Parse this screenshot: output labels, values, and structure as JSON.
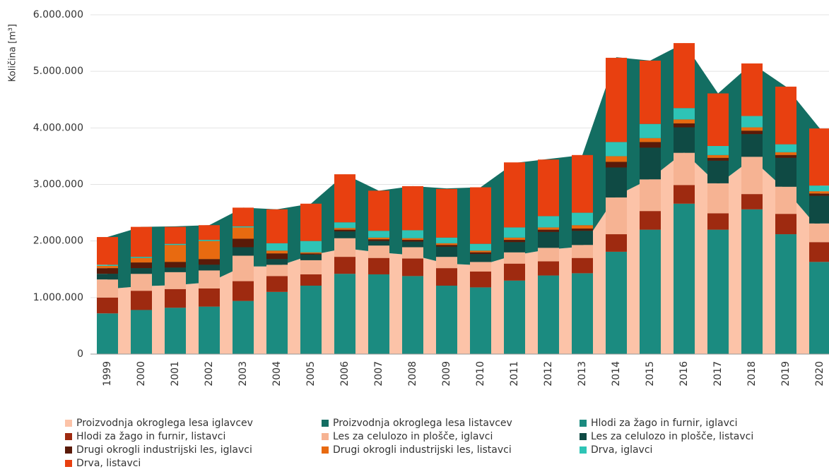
{
  "chart_data": {
    "type": "bar",
    "y_label": "Količina [m³]",
    "categories": [
      "1999",
      "2000",
      "2001",
      "2002",
      "2003",
      "2004",
      "2005",
      "2006",
      "2007",
      "2008",
      "2009",
      "2010",
      "2011",
      "2012",
      "2013",
      "2014",
      "2015",
      "2016",
      "2017",
      "2018",
      "2019",
      "2020"
    ],
    "ylim": [
      0,
      6000000
    ],
    "yticks": [
      0,
      {
        "value": 1000000,
        "label": "1.000.000"
      },
      {
        "value": 2000000,
        "label": "2.000.000"
      },
      {
        "value": 3000000,
        "label": "3.000.000"
      },
      {
        "value": 4000000,
        "label": "4.000.000"
      },
      {
        "value": 5000000,
        "label": "5.000.000"
      },
      {
        "value": 6000000,
        "label": "6.000.000"
      }
    ],
    "grid": true,
    "series": [
      {
        "name": "Proizvodnja okroglega lesa iglavcev",
        "kind": "area",
        "color": "#fcc3a8",
        "values": [
          1150000,
          1200000,
          1220000,
          1270000,
          1550000,
          1550000,
          1750000,
          1870000,
          1800000,
          1750000,
          1600000,
          1570000,
          1750000,
          1850000,
          1900000,
          2800000,
          3100000,
          3570000,
          3000000,
          3450000,
          2900000,
          2200000
        ]
      },
      {
        "name": "Proizvodnja okroglega lesa listavcev",
        "kind": "area",
        "color": "#136e62",
        "values": [
          920000,
          1050000,
          1040000,
          1010000,
          1040000,
          1010000,
          910000,
          1310000,
          1090000,
          1220000,
          1330000,
          1380000,
          1630000,
          1600000,
          1620000,
          2450000,
          2090000,
          1930000,
          1610000,
          1690000,
          1830000,
          1790000
        ]
      },
      {
        "name": "Hlodi za žago in furnir, iglavci",
        "kind": "bar",
        "color": "#1b8b80",
        "values": [
          720000,
          780000,
          820000,
          840000,
          940000,
          1100000,
          1210000,
          1420000,
          1410000,
          1380000,
          1210000,
          1180000,
          1300000,
          1390000,
          1430000,
          1810000,
          2200000,
          2660000,
          2200000,
          2560000,
          2120000,
          1630000
        ]
      },
      {
        "name": "Hlodi za žago in furnir, listavci",
        "kind": "bar",
        "color": "#9e2a10",
        "values": [
          280000,
          340000,
          330000,
          320000,
          350000,
          280000,
          200000,
          300000,
          290000,
          310000,
          310000,
          280000,
          300000,
          250000,
          270000,
          310000,
          330000,
          330000,
          290000,
          270000,
          360000,
          350000
        ]
      },
      {
        "name": "Les za celulozo in plošče, iglavci",
        "kind": "bar",
        "color": "#f6b393",
        "values": [
          320000,
          300000,
          300000,
          320000,
          450000,
          200000,
          250000,
          330000,
          220000,
          200000,
          200000,
          170000,
          200000,
          240000,
          230000,
          650000,
          560000,
          570000,
          530000,
          660000,
          480000,
          330000
        ]
      },
      {
        "name": "Les za celulozo in plošče, listavci",
        "kind": "bar",
        "color": "#0f4a44",
        "values": [
          100000,
          100000,
          80000,
          100000,
          150000,
          100000,
          100000,
          120000,
          80000,
          100000,
          180000,
          140000,
          180000,
          280000,
          250000,
          530000,
          560000,
          450000,
          400000,
          400000,
          510000,
          490000
        ]
      },
      {
        "name": "Drugi okrogli industrijski les, iglavci",
        "kind": "bar",
        "color": "#5a1a08",
        "values": [
          100000,
          100000,
          100000,
          100000,
          150000,
          100000,
          20000,
          30000,
          30000,
          30000,
          30000,
          30000,
          40000,
          40000,
          40000,
          100000,
          100000,
          70000,
          50000,
          60000,
          50000,
          40000
        ]
      },
      {
        "name": "Drugi okrogli industrijski les, listavci",
        "kind": "bar",
        "color": "#e86a10",
        "values": [
          40000,
          80000,
          300000,
          320000,
          200000,
          50000,
          20000,
          30000,
          30000,
          30000,
          30000,
          30000,
          40000,
          40000,
          60000,
          100000,
          70000,
          70000,
          50000,
          60000,
          50000,
          40000
        ]
      },
      {
        "name": "Drva, iglavci",
        "kind": "bar",
        "color": "#2ec4b6",
        "values": [
          20000,
          20000,
          20000,
          20000,
          20000,
          130000,
          200000,
          100000,
          120000,
          140000,
          100000,
          120000,
          180000,
          200000,
          220000,
          250000,
          250000,
          200000,
          160000,
          200000,
          140000,
          100000
        ]
      },
      {
        "name": "Drva, listavci",
        "kind": "bar",
        "color": "#e84010",
        "values": [
          490000,
          530000,
          300000,
          260000,
          330000,
          600000,
          660000,
          850000,
          710000,
          780000,
          860000,
          1000000,
          1150000,
          1000000,
          1020000,
          1490000,
          1120000,
          1150000,
          930000,
          930000,
          1020000,
          1010000
        ]
      }
    ]
  }
}
